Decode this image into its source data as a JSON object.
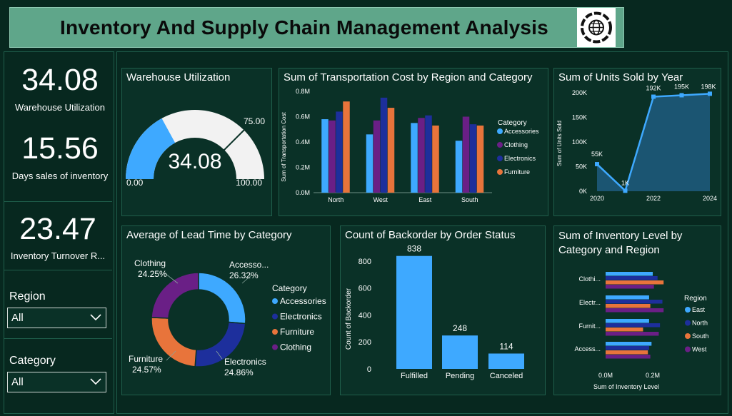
{
  "header": {
    "title": "Inventory And Supply Chain Management Analysis",
    "logo_icon": "globe-gear-icon"
  },
  "kpis": [
    {
      "value": "34.08",
      "label": "Warehouse Utilization"
    },
    {
      "value": "15.56",
      "label": "Days sales of inventory"
    },
    {
      "value": "23.47",
      "label": "Inventory Turnover R..."
    }
  ],
  "slicers": {
    "region": {
      "label": "Region",
      "value": "All"
    },
    "category": {
      "label": "Category",
      "value": "All"
    }
  },
  "colors": {
    "accessories": "#3ea9ff",
    "clothing": "#6a1f86",
    "electronics": "#1d2f9c",
    "furniture": "#e8743b",
    "panel": "#0a3127"
  },
  "gauge": {
    "title": "Warehouse Utilization",
    "value": 34.08,
    "value_label": "34.08",
    "min_label": "0.00",
    "max_label": "100.00",
    "target_label": "75.00",
    "min": 0,
    "max": 100,
    "target": 75
  },
  "transport": {
    "title": "Sum of Transportation Cost by Region and Category",
    "ylabel": "Sum of Transportation Cost",
    "yticks": [
      "0.0M",
      "0.2M",
      "0.4M",
      "0.6M",
      "0.8M"
    ],
    "legend_title": "Category"
  },
  "units": {
    "title": "Sum of Units Sold by Year",
    "ylabel": "Sum of Units Sold",
    "yticks": [
      "0K",
      "50K",
      "100K",
      "150K",
      "200K"
    ],
    "xticks": [
      "2020",
      "2022",
      "2024"
    ]
  },
  "lead": {
    "title": "Average of Lead Time by Category",
    "legend_title": "Category",
    "slice_labels": [
      {
        "name": "Accesso...",
        "pct": "26.32%"
      },
      {
        "name": "Electronics",
        "pct": "24.86%"
      },
      {
        "name": "Furniture",
        "pct": "24.57%"
      },
      {
        "name": "Clothing",
        "pct": "24.25%"
      }
    ]
  },
  "backorder": {
    "title": "Count of Backorder by Order Status",
    "ylabel": "Count of Backorder",
    "yticks": [
      "0",
      "200",
      "400",
      "600",
      "800"
    ]
  },
  "inventory": {
    "title_line1": "Sum of Inventory Level by",
    "title_line2": "Category and Region",
    "xlabel": "Sum of Inventory Level",
    "xticks": [
      "0.0M",
      "0.2M"
    ],
    "legend_title": "Region"
  },
  "chart_data": [
    {
      "type": "gauge",
      "value": 34.08,
      "min": 0,
      "max": 100,
      "target": 75
    },
    {
      "type": "bar",
      "categories": [
        "North",
        "West",
        "East",
        "South"
      ],
      "series": [
        {
          "name": "Accessories",
          "values": [
            0.58,
            0.46,
            0.55,
            0.41
          ]
        },
        {
          "name": "Clothing",
          "values": [
            0.57,
            0.57,
            0.59,
            0.6
          ]
        },
        {
          "name": "Electronics",
          "values": [
            0.64,
            0.75,
            0.61,
            0.54
          ]
        },
        {
          "name": "Furniture",
          "values": [
            0.72,
            0.67,
            0.53,
            0.53
          ]
        }
      ],
      "ylim": [
        0,
        0.8
      ]
    },
    {
      "type": "area",
      "x": [
        2020,
        2021,
        2022,
        2023,
        2024
      ],
      "values": [
        55,
        1,
        192,
        195,
        198
      ],
      "data_labels": [
        "55K",
        "1K",
        "192K",
        "195K",
        "198K"
      ],
      "ylim": [
        0,
        200
      ]
    },
    {
      "type": "pie",
      "categories": [
        "Accessories",
        "Electronics",
        "Furniture",
        "Clothing"
      ],
      "values": [
        26.32,
        24.86,
        24.57,
        24.25
      ]
    },
    {
      "type": "bar",
      "categories": [
        "Fulfilled",
        "Pending",
        "Canceled"
      ],
      "values": [
        838,
        248,
        114
      ],
      "data_labels": [
        "838",
        "248",
        "114"
      ],
      "ylim": [
        0,
        900
      ]
    },
    {
      "type": "bar",
      "orientation": "horizontal",
      "categories": [
        "Clothi...",
        "Electr...",
        "Furnit...",
        "Access..."
      ],
      "series": [
        {
          "name": "East",
          "values": [
            0.195,
            0.18,
            0.18,
            0.19
          ]
        },
        {
          "name": "North",
          "values": [
            0.215,
            0.235,
            0.225,
            0.18
          ]
        },
        {
          "name": "South",
          "values": [
            0.24,
            0.185,
            0.155,
            0.175
          ]
        },
        {
          "name": "West",
          "values": [
            0.2,
            0.24,
            0.22,
            0.185
          ]
        }
      ],
      "xlim": [
        0,
        0.26
      ]
    }
  ]
}
